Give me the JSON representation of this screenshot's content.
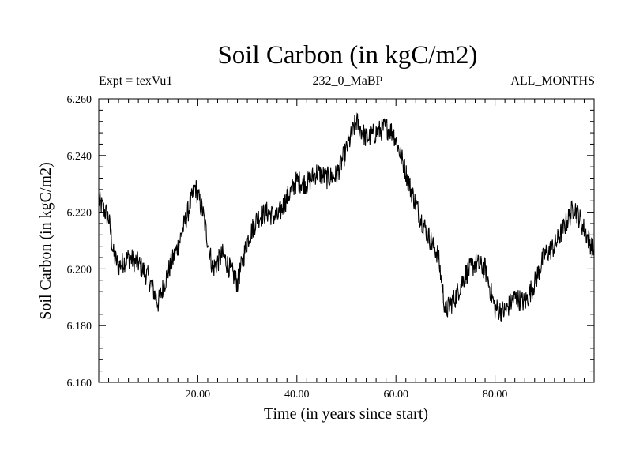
{
  "chart_data": {
    "type": "line",
    "title": "Soil Carbon (in kgC/m2)",
    "subtitle_left": "Expt = texVu1",
    "subtitle_center": "232_0_MaBP",
    "subtitle_right": "ALL_MONTHS",
    "xlabel": "Time (in years since start)",
    "ylabel": "Soil Carbon (in kgC/m2)",
    "xlim": [
      0,
      100
    ],
    "ylim": [
      6.16,
      6.26
    ],
    "xticks": [
      20,
      40,
      60,
      80
    ],
    "xtick_labels": [
      "20.00",
      "40.00",
      "60.00",
      "80.00"
    ],
    "yticks": [
      6.16,
      6.18,
      6.2,
      6.22,
      6.24,
      6.26
    ],
    "ytick_labels": [
      "6.160",
      "6.180",
      "6.200",
      "6.220",
      "6.240",
      "6.260"
    ],
    "grid": false,
    "noise_amplitude": 0.004,
    "series": [
      {
        "name": "Soil Carbon",
        "color": "#000000",
        "x": [
          0,
          2,
          3,
          4,
          6,
          8,
          10,
          12,
          14,
          16,
          18,
          19.5,
          21,
          23,
          25,
          26.5,
          28,
          30,
          32,
          34,
          36,
          38,
          40,
          42,
          44,
          46,
          48,
          50,
          52,
          54,
          56,
          58,
          59.5,
          61,
          63,
          65,
          67,
          68.5,
          70,
          72,
          74,
          76,
          78,
          80,
          82,
          84,
          86,
          88,
          90,
          92,
          94,
          96,
          98,
          100
        ],
        "y": [
          6.224,
          6.218,
          6.205,
          6.201,
          6.204,
          6.202,
          6.197,
          6.188,
          6.199,
          6.208,
          6.22,
          6.229,
          6.22,
          6.2,
          6.205,
          6.2,
          6.195,
          6.21,
          6.218,
          6.22,
          6.218,
          6.225,
          6.231,
          6.23,
          6.234,
          6.232,
          6.233,
          6.242,
          6.252,
          6.246,
          6.248,
          6.25,
          6.248,
          6.24,
          6.228,
          6.218,
          6.21,
          6.205,
          6.185,
          6.19,
          6.198,
          6.202,
          6.2,
          6.186,
          6.185,
          6.19,
          6.188,
          6.195,
          6.205,
          6.208,
          6.215,
          6.222,
          6.214,
          6.206
        ]
      }
    ]
  }
}
